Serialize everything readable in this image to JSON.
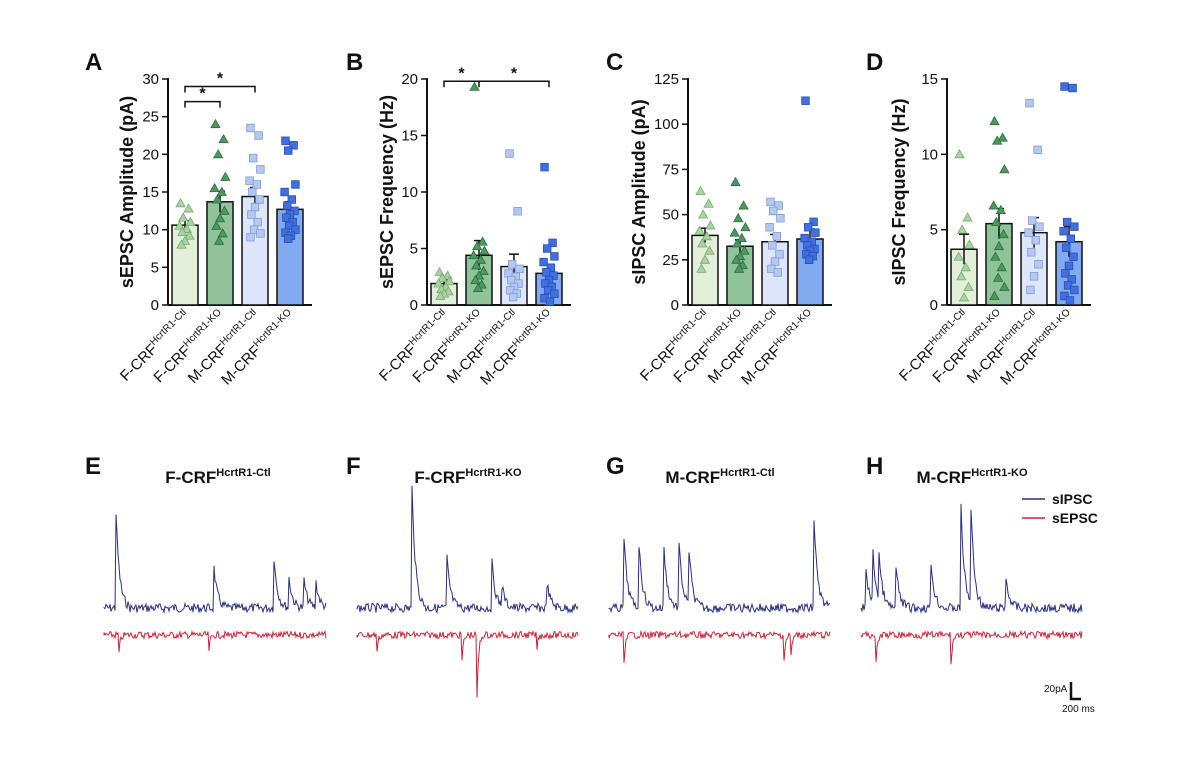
{
  "chart_data": [
    {
      "type": "bar",
      "panel": "A",
      "ylabel": "sEPSC Amplitude (pA)",
      "ylim": [
        0,
        30
      ],
      "yticks": [
        0,
        5,
        10,
        15,
        20,
        25,
        30
      ],
      "means": [
        10.6,
        13.7,
        14.4,
        12.7
      ],
      "sems": [
        0.6,
        1.4,
        1.2,
        1.0
      ],
      "points": [
        [
          13.5,
          12.8,
          11.6,
          11.0,
          10.5,
          10.1,
          9.7,
          9.2,
          8.5,
          8.0
        ],
        [
          24.0,
          22.0,
          20.0,
          17.0,
          15.5,
          15.0,
          14.0,
          12.5,
          11.5,
          10.5,
          9.5,
          8.5
        ],
        [
          23.5,
          22.5,
          19.5,
          18.0,
          16.5,
          16.0,
          15.0,
          14.0,
          13.0,
          12.0,
          11.0,
          10.0,
          9.5,
          9.0
        ],
        [
          21.8,
          21.2,
          20.5,
          16.0,
          15.0,
          14.0,
          13.2,
          12.5,
          12.0,
          11.6,
          11.0,
          10.5,
          10.0,
          9.6,
          9.2,
          8.8
        ]
      ],
      "comparisons": [
        {
          "from": 0,
          "to": 1,
          "level": 27.0,
          "label": "*"
        },
        {
          "from": 0,
          "to": 2,
          "level": 29.0,
          "label": "*"
        }
      ]
    },
    {
      "type": "bar",
      "panel": "B",
      "ylabel": "sEPSC Frequency (Hz)",
      "ylim": [
        0,
        20
      ],
      "yticks": [
        0,
        5,
        10,
        15,
        20
      ],
      "means": [
        1.9,
        4.4,
        3.4,
        2.8
      ],
      "sems": [
        0.3,
        1.3,
        1.1,
        0.8
      ],
      "points": [
        [
          2.9,
          2.6,
          2.4,
          2.1,
          1.9,
          1.6,
          1.4,
          1.2,
          1.0,
          0.8
        ],
        [
          19.3,
          5.6,
          5.2,
          4.8,
          4.4,
          4.0,
          3.5,
          3.0,
          2.6,
          2.2,
          1.8,
          1.5
        ],
        [
          13.4,
          8.3,
          3.6,
          3.2,
          2.8,
          2.5,
          2.2,
          1.9,
          1.6,
          1.3,
          1.0,
          0.7
        ],
        [
          12.2,
          5.5,
          5.0,
          4.3,
          3.8,
          3.3,
          2.9,
          2.6,
          2.2,
          1.9,
          1.6,
          1.3,
          1.0,
          0.6,
          0.3
        ]
      ],
      "comparisons": [
        {
          "from": 0,
          "to": 3,
          "level": 19.8,
          "label": "*",
          "mid": 1,
          "starPositions": [
            0.5,
            2.0
          ]
        }
      ]
    },
    {
      "type": "bar",
      "panel": "C",
      "ylabel": "sIPSC Amplitude (pA)",
      "ylim": [
        0,
        125
      ],
      "yticks": [
        0,
        25,
        50,
        75,
        100,
        125
      ],
      "means": [
        38.5,
        32.5,
        35.0,
        36.5
      ],
      "sems": [
        4.0,
        3.5,
        4.0,
        5.5
      ],
      "points": [
        [
          63.0,
          56.0,
          50.0,
          44.0,
          41.0,
          38.0,
          34.0,
          30.0,
          25.0,
          20.0
        ],
        [
          68.0,
          55.0,
          48.0,
          43.0,
          40.0,
          37.0,
          34.0,
          30.0,
          27.0,
          25.0,
          22.0,
          20.0
        ],
        [
          57.0,
          55.0,
          52.0,
          48.0,
          43.0,
          38.0,
          33.0,
          28.0,
          24.0,
          20.0,
          18.0
        ],
        [
          113.0,
          46.0,
          43.0,
          40.0,
          37.0,
          35.0,
          33.0,
          31.0,
          30.0,
          28.0,
          27.0,
          25.0
        ]
      ],
      "comparisons": []
    },
    {
      "type": "bar",
      "panel": "D",
      "ylabel": "sIPSC Frequency (Hz)",
      "ylim": [
        0,
        15
      ],
      "yticks": [
        0,
        5,
        10,
        15
      ],
      "means": [
        3.7,
        5.4,
        4.8,
        4.2
      ],
      "sems": [
        1.0,
        1.0,
        1.0,
        1.0
      ],
      "points": [
        [
          10.0,
          5.8,
          5.0,
          4.0,
          3.2,
          2.5,
          1.9,
          1.2,
          0.5
        ],
        [
          12.2,
          11.1,
          10.9,
          9.0,
          6.6,
          6.3,
          5.5,
          4.7,
          3.9,
          3.2,
          2.5,
          1.8,
          1.2,
          0.6
        ],
        [
          13.4,
          10.3,
          5.6,
          5.2,
          4.8,
          4.3,
          3.5,
          2.7,
          1.9,
          1.0
        ],
        [
          14.5,
          14.4,
          5.5,
          5.2,
          4.9,
          4.4,
          3.8,
          3.2,
          2.6,
          2.1,
          1.7,
          1.3,
          1.0,
          0.6,
          0.3
        ]
      ],
      "comparisons": []
    }
  ],
  "panels": {
    "A": "A",
    "B": "B",
    "C": "C",
    "D": "D",
    "E": "E",
    "F": "F",
    "G": "G",
    "H": "H"
  },
  "groups": [
    {
      "base": "F-CRF",
      "sup": "HcrtR1-Ctl"
    },
    {
      "base": "F-CRF",
      "sup": "HcrtR1-KO"
    },
    {
      "base": "M-CRF",
      "sup": "HcrtR1-Ctl"
    },
    {
      "base": "M-CRF",
      "sup": "HcrtR1-KO"
    }
  ],
  "colors": {
    "fill": [
      "#e2f0d9",
      "#8fc49a",
      "#dde6fa",
      "#82aaf0"
    ],
    "marker": [
      "#a8d4a0",
      "#4a9a5e",
      "#b4c9f2",
      "#3f6fe0"
    ],
    "sipsc_trace": "#2b2f82",
    "sepsc_trace": "#c8263a",
    "axis": "#111111"
  },
  "traces": {
    "titles": [
      {
        "base": "F-CRF",
        "sup": "HcrtR1-Ctl"
      },
      {
        "base": "F-CRF",
        "sup": "HcrtR1-KO"
      },
      {
        "base": "M-CRF",
        "sup": "HcrtR1-Ctl"
      },
      {
        "base": "M-CRF",
        "sup": "HcrtR1-KO"
      }
    ]
  },
  "legend": {
    "sipsc": "sIPSC",
    "sepsc": "sEPSC"
  },
  "scale_bar": {
    "amplitude": "20pA",
    "time": "200 ms"
  }
}
